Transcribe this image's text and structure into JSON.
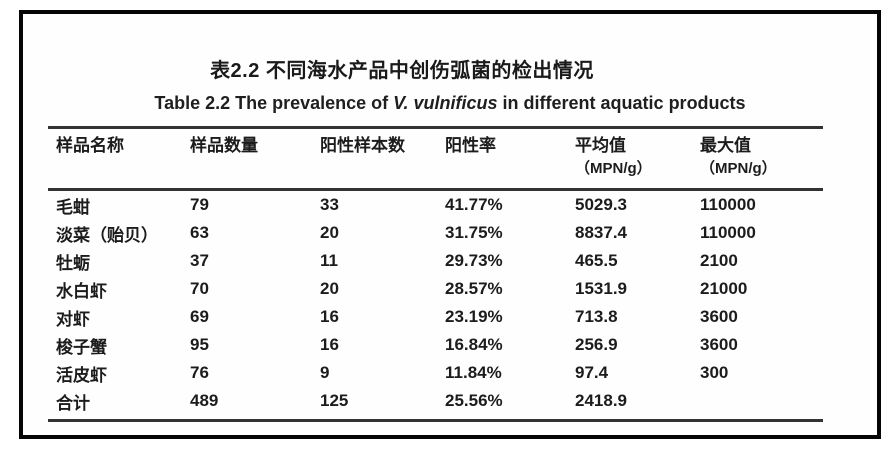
{
  "titles": {
    "zh": "表2.2 不同海水产品中创伤弧菌的检出情况",
    "en_prefix": "Table 2.2 The prevalence of ",
    "en_italic": "V. vulnificus",
    "en_suffix": " in different aquatic products"
  },
  "table": {
    "columns": [
      {
        "label": "样品名称",
        "sub": ""
      },
      {
        "label": "样品数量",
        "sub": ""
      },
      {
        "label": "阳性样本数",
        "sub": ""
      },
      {
        "label": "阳性率",
        "sub": ""
      },
      {
        "label": "平均值",
        "sub": "（MPN/g）"
      },
      {
        "label": "最大值",
        "sub": "（MPN/g）"
      }
    ],
    "rows": [
      [
        "毛蚶",
        "79",
        "33",
        "41.77%",
        "5029.3",
        "110000"
      ],
      [
        "淡菜（贻贝）",
        "63",
        "20",
        "31.75%",
        "8837.4",
        "110000"
      ],
      [
        "牡蛎",
        "37",
        "11",
        "29.73%",
        "465.5",
        "2100"
      ],
      [
        "水白虾",
        "70",
        "20",
        "28.57%",
        "1531.9",
        "21000"
      ],
      [
        "对虾",
        "69",
        "16",
        "23.19%",
        "713.8",
        "3600"
      ],
      [
        "梭子蟹",
        "95",
        "16",
        "16.84%",
        "256.9",
        "3600"
      ],
      [
        "活皮虾",
        "76",
        "9",
        "11.84%",
        "97.4",
        "300"
      ],
      [
        "合计",
        "489",
        "125",
        "25.56%",
        "2418.9",
        ""
      ]
    ]
  },
  "colors": {
    "frame_border": "#050505",
    "rule": "#333333",
    "text": "#1c1c1c",
    "background": "#ffffff"
  }
}
